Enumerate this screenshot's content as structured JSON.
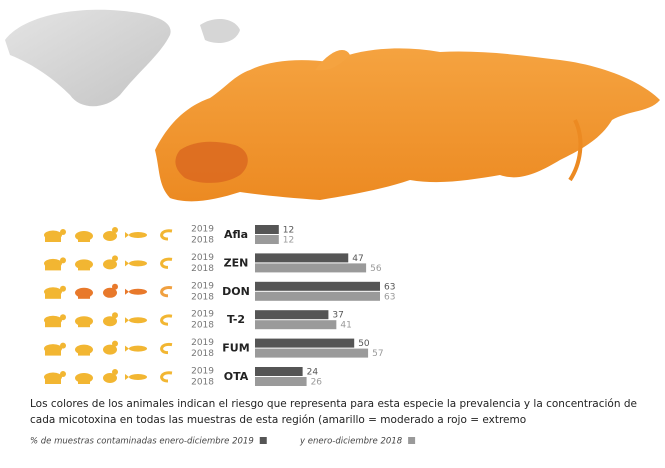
{
  "chart_data": {
    "type": "bar",
    "orientation": "horizontal",
    "categories": [
      "Afla",
      "ZEN",
      "DON",
      "T-2",
      "FUM",
      "OTA"
    ],
    "row_year_labels": [
      "2019",
      "2018"
    ],
    "series": [
      {
        "name": "% de muestras contaminadas enero-diciembre 2019",
        "color": "#555555",
        "values": [
          12,
          47,
          63,
          37,
          50,
          24
        ]
      },
      {
        "name": "y enero-diciembre 2018",
        "color": "#9a9a9a",
        "values": [
          12,
          56,
          63,
          41,
          57,
          26
        ]
      }
    ],
    "animal_colors": [
      [
        "#f2b632",
        "#f2b632",
        "#f2b632",
        "#f2b632",
        "#f2b632"
      ],
      [
        "#f2b632",
        "#f2b632",
        "#f2b632",
        "#f2b632",
        "#f2b632"
      ],
      [
        "#f2b632",
        "#e8792b",
        "#e8792b",
        "#e8792b",
        "#f0a040"
      ],
      [
        "#f2b632",
        "#f2b632",
        "#f2b632",
        "#f2b632",
        "#f2b632"
      ],
      [
        "#f2b632",
        "#f2b632",
        "#f2b632",
        "#f2b632",
        "#f2b632"
      ],
      [
        "#f2b632",
        "#f2b632",
        "#f2b632",
        "#f2b632",
        "#f2b632"
      ]
    ],
    "caption": "Los colores de los animales indican el riesgo que representa para esta especie la prevalencia y la concentración de cada micotoxina en todas las muestras de esta región (amarillo = moderado a rojo = extremo"
  }
}
